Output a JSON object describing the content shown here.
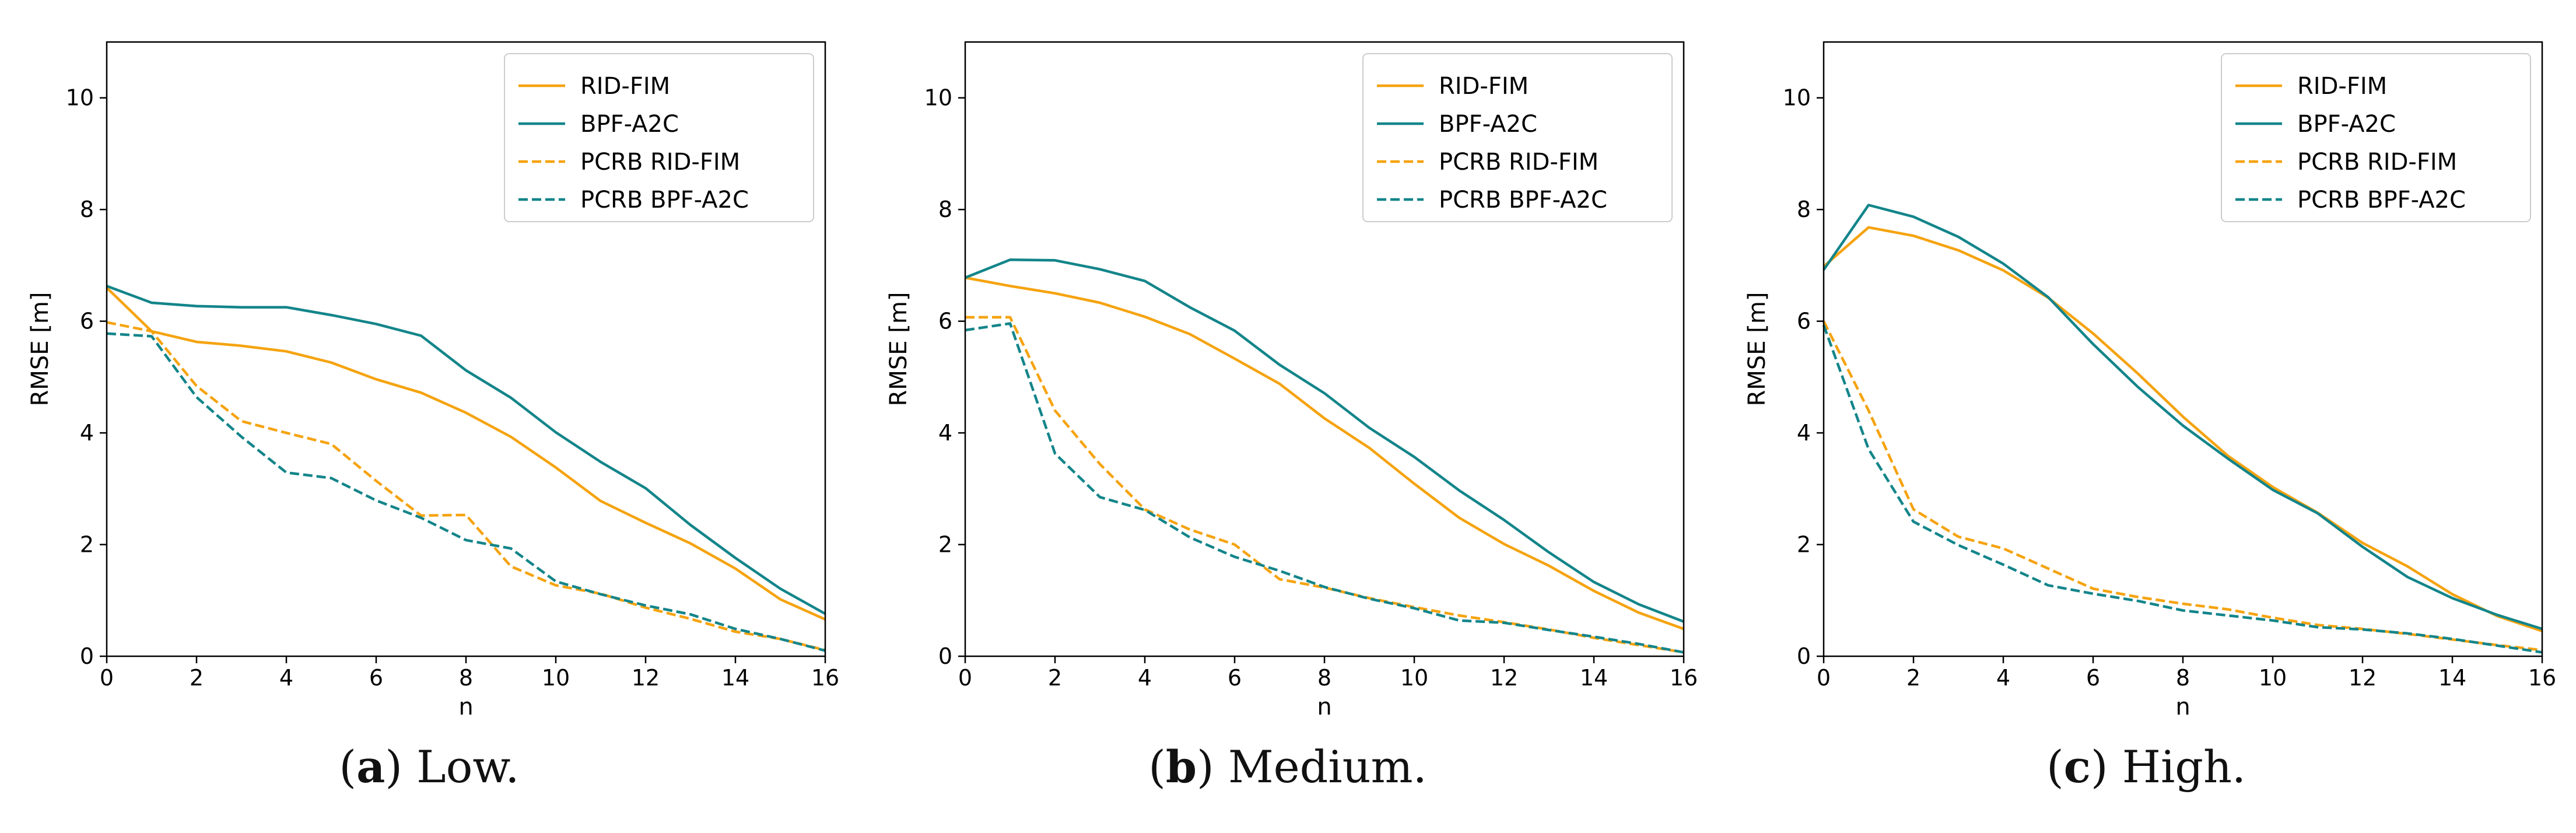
{
  "colors": {
    "rid": "#f5a30f",
    "bpf": "#13858a"
  },
  "chart_data": [
    {
      "type": "line",
      "caption_letter": "a",
      "caption_text": " Low.",
      "xlabel": "n",
      "ylabel": "RMSE [m]",
      "xlim": [
        0,
        16
      ],
      "ylim": [
        0,
        11
      ],
      "xticks": [
        0,
        2,
        4,
        6,
        8,
        10,
        12,
        14,
        16
      ],
      "yticks": [
        0,
        2,
        4,
        6,
        8,
        10
      ],
      "legend": {
        "position": "top-right",
        "entries": [
          "RID-FIM",
          "BPF-A2C",
          "PCRB RID-FIM",
          "PCRB BPF-A2C"
        ]
      },
      "x": [
        0,
        1,
        2,
        3,
        4,
        5,
        6,
        7,
        8,
        9,
        10,
        11,
        12,
        13,
        14,
        15,
        16
      ],
      "series": [
        {
          "name": "RID-FIM",
          "style": "solid",
          "color": "#f5a30f",
          "values": [
            6.6,
            5.82,
            5.63,
            5.56,
            5.46,
            5.26,
            4.96,
            4.72,
            4.36,
            3.93,
            3.38,
            2.78,
            2.39,
            2.02,
            1.57,
            1.02,
            0.66
          ]
        },
        {
          "name": "BPF-A2C",
          "style": "solid",
          "color": "#13858a",
          "values": [
            6.63,
            6.33,
            6.27,
            6.25,
            6.25,
            6.11,
            5.95,
            5.74,
            5.12,
            4.63,
            4.01,
            3.48,
            3.01,
            2.35,
            1.76,
            1.21,
            0.76
          ]
        },
        {
          "name": "PCRB RID-FIM",
          "style": "dashed",
          "color": "#f5a30f",
          "values": [
            5.98,
            5.82,
            4.84,
            4.21,
            4.0,
            3.8,
            3.14,
            2.52,
            2.53,
            1.61,
            1.27,
            1.12,
            0.87,
            0.67,
            0.44,
            0.31,
            0.11
          ]
        },
        {
          "name": "PCRB BPF-A2C",
          "style": "dashed",
          "color": "#13858a",
          "values": [
            5.78,
            5.73,
            4.64,
            3.93,
            3.29,
            3.19,
            2.79,
            2.48,
            2.08,
            1.93,
            1.34,
            1.11,
            0.91,
            0.75,
            0.49,
            0.31,
            0.1
          ]
        }
      ]
    },
    {
      "type": "line",
      "caption_letter": "b",
      "caption_text": " Medium.",
      "xlabel": "n",
      "ylabel": "RMSE [m]",
      "xlim": [
        0,
        16
      ],
      "ylim": [
        0,
        11
      ],
      "xticks": [
        0,
        2,
        4,
        6,
        8,
        10,
        12,
        14,
        16
      ],
      "yticks": [
        0,
        2,
        4,
        6,
        8,
        10
      ],
      "legend": {
        "position": "top-right",
        "entries": [
          "RID-FIM",
          "BPF-A2C",
          "PCRB RID-FIM",
          "PCRB BPF-A2C"
        ]
      },
      "x": [
        0,
        1,
        2,
        3,
        4,
        5,
        6,
        7,
        8,
        9,
        10,
        11,
        12,
        13,
        14,
        15,
        16
      ],
      "series": [
        {
          "name": "RID-FIM",
          "style": "solid",
          "color": "#f5a30f",
          "values": [
            6.78,
            6.63,
            6.5,
            6.33,
            6.08,
            5.77,
            5.33,
            4.88,
            4.26,
            3.73,
            3.09,
            2.48,
            2.01,
            1.62,
            1.17,
            0.78,
            0.49
          ]
        },
        {
          "name": "BPF-A2C",
          "style": "solid",
          "color": "#13858a",
          "values": [
            6.78,
            7.1,
            7.09,
            6.93,
            6.72,
            6.25,
            5.83,
            5.22,
            4.71,
            4.09,
            3.57,
            2.97,
            2.44,
            1.86,
            1.33,
            0.93,
            0.62
          ]
        },
        {
          "name": "PCRB RID-FIM",
          "style": "dashed",
          "color": "#f5a30f",
          "values": [
            6.07,
            6.07,
            4.4,
            3.44,
            2.63,
            2.27,
            2.0,
            1.38,
            1.23,
            1.04,
            0.88,
            0.73,
            0.61,
            0.48,
            0.33,
            0.2,
            0.07
          ]
        },
        {
          "name": "PCRB BPF-A2C",
          "style": "dashed",
          "color": "#13858a",
          "values": [
            5.84,
            5.96,
            3.63,
            2.85,
            2.62,
            2.13,
            1.78,
            1.53,
            1.24,
            1.03,
            0.86,
            0.64,
            0.6,
            0.47,
            0.35,
            0.22,
            0.07
          ]
        }
      ]
    },
    {
      "type": "line",
      "caption_letter": "c",
      "caption_text": " High.",
      "xlabel": "n",
      "ylabel": "RMSE [m]",
      "xlim": [
        0,
        16
      ],
      "ylim": [
        0,
        11
      ],
      "xticks": [
        0,
        2,
        4,
        6,
        8,
        10,
        12,
        14,
        16
      ],
      "yticks": [
        0,
        2,
        4,
        6,
        8,
        10
      ],
      "legend": {
        "position": "top-right",
        "entries": [
          "RID-FIM",
          "BPF-A2C",
          "PCRB RID-FIM",
          "PCRB BPF-A2C"
        ]
      },
      "x": [
        0,
        1,
        2,
        3,
        4,
        5,
        6,
        7,
        8,
        9,
        10,
        11,
        12,
        13,
        14,
        15,
        16
      ],
      "series": [
        {
          "name": "RID-FIM",
          "style": "solid",
          "color": "#f5a30f",
          "values": [
            6.98,
            7.68,
            7.53,
            7.27,
            6.91,
            6.42,
            5.78,
            5.06,
            4.29,
            3.59,
            3.03,
            2.57,
            2.03,
            1.61,
            1.11,
            0.72,
            0.45
          ]
        },
        {
          "name": "BPF-A2C",
          "style": "solid",
          "color": "#13858a",
          "values": [
            6.92,
            8.08,
            7.87,
            7.51,
            7.03,
            6.43,
            5.59,
            4.82,
            4.13,
            3.54,
            2.98,
            2.56,
            1.96,
            1.42,
            1.04,
            0.74,
            0.49
          ]
        },
        {
          "name": "PCRB RID-FIM",
          "style": "dashed",
          "color": "#f5a30f",
          "values": [
            6.0,
            4.4,
            2.63,
            2.14,
            1.93,
            1.57,
            1.21,
            1.06,
            0.94,
            0.84,
            0.69,
            0.56,
            0.49,
            0.4,
            0.3,
            0.2,
            0.11
          ]
        },
        {
          "name": "PCRB BPF-A2C",
          "style": "dashed",
          "color": "#13858a",
          "values": [
            5.93,
            3.71,
            2.41,
            1.99,
            1.64,
            1.27,
            1.12,
            0.99,
            0.82,
            0.73,
            0.64,
            0.52,
            0.48,
            0.41,
            0.31,
            0.19,
            0.07
          ]
        }
      ]
    }
  ]
}
